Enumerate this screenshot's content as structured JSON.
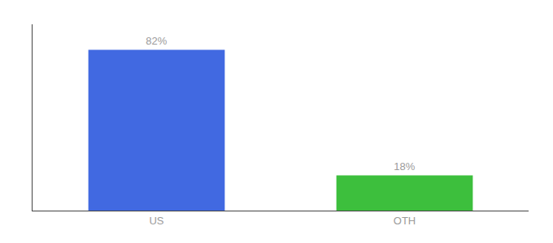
{
  "chart_data": {
    "type": "bar",
    "categories": [
      "US",
      "OTH"
    ],
    "values": [
      82,
      18
    ],
    "value_labels": [
      "82%",
      "18%"
    ],
    "colors": [
      "#4169e1",
      "#3dbf3d"
    ],
    "ylim": [
      0,
      95
    ],
    "data_labels": true,
    "tick_labels": "x",
    "grid": false
  }
}
